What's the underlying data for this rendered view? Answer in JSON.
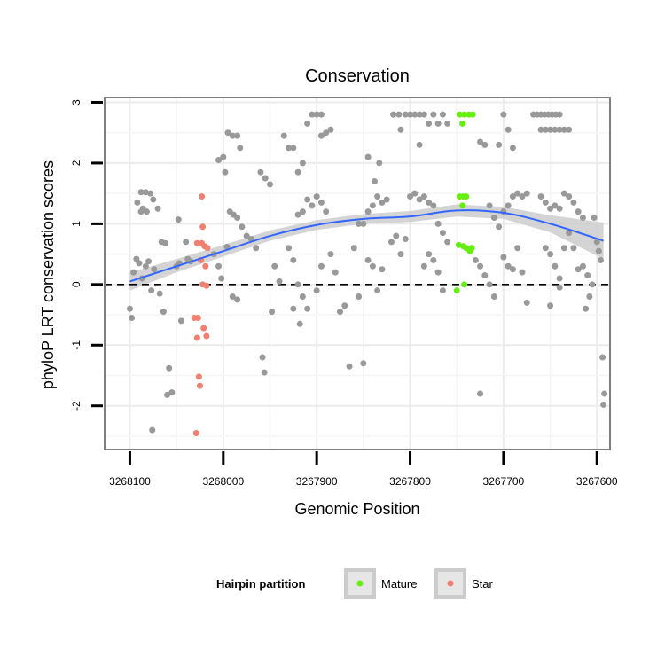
{
  "chart_data": {
    "type": "scatter",
    "title": "Conservation",
    "xlabel": "Genomic Position",
    "ylabel": "phyloP LRT conservation scores",
    "x_reversed": true,
    "xlim": [
      3268127,
      3267586
    ],
    "ylim": [
      -2.72,
      3.08
    ],
    "x_ticks": [
      {
        "value": 3268100,
        "label": "3268100"
      },
      {
        "value": 3268000,
        "label": "3268000"
      },
      {
        "value": 3267900,
        "label": "3267900"
      },
      {
        "value": 3267800,
        "label": "3267800"
      },
      {
        "value": 3267700,
        "label": "3267700"
      },
      {
        "value": 3267600,
        "label": "3267600"
      }
    ],
    "y_ticks": [
      {
        "value": -2,
        "label": "-2"
      },
      {
        "value": -1,
        "label": "-1"
      },
      {
        "value": 0,
        "label": "0"
      },
      {
        "value": 1,
        "label": "1"
      },
      {
        "value": 2,
        "label": "2"
      },
      {
        "value": 3,
        "label": "3"
      }
    ],
    "reference_line": {
      "y": 0,
      "style": "dashed"
    },
    "grid": true,
    "legend": {
      "title": "Hairpin partition",
      "position": "bottom",
      "entries": [
        {
          "label": "Mature",
          "color": "#66ee11"
        },
        {
          "label": "Star",
          "color": "#f08070"
        }
      ]
    },
    "colors": {
      "other": "#999999",
      "smooth_line": "#3366ff",
      "ribbon": "#cccccc"
    },
    "series": [
      {
        "name": "Mature",
        "color": "#66ee11",
        "points": [
          [
            3267747,
            2.8
          ],
          [
            3267742,
            2.8
          ],
          [
            3267737,
            2.8
          ],
          [
            3267733,
            2.8
          ],
          [
            3267744,
            2.65
          ],
          [
            3267747,
            1.45
          ],
          [
            3267743,
            1.45
          ],
          [
            3267740,
            1.45
          ],
          [
            3267744,
            1.3
          ],
          [
            3267748,
            0.65
          ],
          [
            3267743,
            0.63
          ],
          [
            3267740,
            0.6
          ],
          [
            3267736,
            0.55
          ],
          [
            3267734,
            0.6
          ],
          [
            3267742,
            0.0
          ],
          [
            3267750,
            -0.1
          ]
        ]
      },
      {
        "name": "Star",
        "color": "#f08070",
        "points": [
          [
            3268023,
            1.45
          ],
          [
            3268022,
            0.95
          ],
          [
            3268028,
            0.68
          ],
          [
            3268023,
            0.68
          ],
          [
            3268020,
            0.63
          ],
          [
            3268017,
            0.6
          ],
          [
            3268024,
            0.4
          ],
          [
            3268019,
            0.3
          ],
          [
            3268022,
            0.0
          ],
          [
            3268018,
            -0.02
          ],
          [
            3268027,
            -0.55
          ],
          [
            3268031,
            -0.55
          ],
          [
            3268021,
            -0.72
          ],
          [
            3268028,
            -0.88
          ],
          [
            3268018,
            -0.85
          ],
          [
            3268026,
            -1.52
          ],
          [
            3268025,
            -1.67
          ],
          [
            3268029,
            -2.45
          ]
        ]
      }
    ],
    "other_points": [
      [
        3268100,
        -0.4
      ],
      [
        3268098,
        -0.55
      ],
      [
        3268096,
        0.2
      ],
      [
        3268093,
        0.42
      ],
      [
        3268090,
        0.35
      ],
      [
        3268087,
        0.1
      ],
      [
        3268083,
        0.3
      ],
      [
        3268080,
        0.38
      ],
      [
        3268077,
        -0.1
      ],
      [
        3268074,
        0.25
      ],
      [
        3268092,
        1.35
      ],
      [
        3268088,
        1.52
      ],
      [
        3268083,
        1.52
      ],
      [
        3268078,
        1.5
      ],
      [
        3268075,
        1.4
      ],
      [
        3268086,
        1.25
      ],
      [
        3268082,
        1.2
      ],
      [
        3268088,
        1.2
      ],
      [
        3268070,
        1.25
      ],
      [
        3268066,
        0.7
      ],
      [
        3268062,
        0.68
      ],
      [
        3268068,
        -0.15
      ],
      [
        3268064,
        -0.45
      ],
      [
        3268058,
        -1.38
      ],
      [
        3268060,
        -1.82
      ],
      [
        3268055,
        -1.78
      ],
      [
        3268050,
        0.3
      ],
      [
        3268047,
        0.35
      ],
      [
        3268045,
        -0.6
      ],
      [
        3268048,
        1.07
      ],
      [
        3268040,
        0.7
      ],
      [
        3268035,
        0.38
      ],
      [
        3268038,
        0.42
      ],
      [
        3268076,
        -2.4
      ],
      [
        3268005,
        2.05
      ],
      [
        3268000,
        2.1
      ],
      [
        3267995,
        2.5
      ],
      [
        3267990,
        2.45
      ],
      [
        3267985,
        2.45
      ],
      [
        3267982,
        2.25
      ],
      [
        3267998,
        1.85
      ],
      [
        3267993,
        1.2
      ],
      [
        3267989,
        1.15
      ],
      [
        3267985,
        1.1
      ],
      [
        3267980,
        0.95
      ],
      [
        3267975,
        0.8
      ],
      [
        3268010,
        0.5
      ],
      [
        3268005,
        0.3
      ],
      [
        3268002,
        0.1
      ],
      [
        3267996,
        0.62
      ],
      [
        3267990,
        -0.2
      ],
      [
        3267985,
        -0.25
      ],
      [
        3267970,
        0.75
      ],
      [
        3267965,
        0.6
      ],
      [
        3267960,
        1.85
      ],
      [
        3267955,
        1.75
      ],
      [
        3267950,
        1.65
      ],
      [
        3267958,
        -1.2
      ],
      [
        3267956,
        -1.45
      ],
      [
        3267945,
        0.3
      ],
      [
        3267940,
        0.05
      ],
      [
        3267948,
        -0.45
      ],
      [
        3267935,
        2.45
      ],
      [
        3267930,
        2.25
      ],
      [
        3267925,
        2.25
      ],
      [
        3267920,
        1.85
      ],
      [
        3267915,
        2.0
      ],
      [
        3267910,
        2.65
      ],
      [
        3267905,
        2.8
      ],
      [
        3267900,
        2.8
      ],
      [
        3267895,
        2.8
      ],
      [
        3267890,
        2.5
      ],
      [
        3267885,
        2.55
      ],
      [
        3267895,
        2.45
      ],
      [
        3267920,
        1.15
      ],
      [
        3267915,
        1.2
      ],
      [
        3267910,
        1.4
      ],
      [
        3267905,
        1.3
      ],
      [
        3267900,
        1.45
      ],
      [
        3267895,
        1.35
      ],
      [
        3267890,
        1.2
      ],
      [
        3267930,
        0.6
      ],
      [
        3267925,
        0.4
      ],
      [
        3267920,
        0.0
      ],
      [
        3267915,
        -0.2
      ],
      [
        3267910,
        -0.4
      ],
      [
        3267918,
        -0.65
      ],
      [
        3267925,
        -0.4
      ],
      [
        3267900,
        -0.1
      ],
      [
        3267895,
        0.3
      ],
      [
        3267885,
        0.5
      ],
      [
        3267880,
        0.2
      ],
      [
        3267875,
        -0.45
      ],
      [
        3267870,
        -0.35
      ],
      [
        3267865,
        -1.35
      ],
      [
        3267855,
        -0.2
      ],
      [
        3267860,
        0.6
      ],
      [
        3267855,
        1.0
      ],
      [
        3267850,
        1.0
      ],
      [
        3267845,
        1.2
      ],
      [
        3267840,
        1.3
      ],
      [
        3267835,
        1.45
      ],
      [
        3267830,
        1.35
      ],
      [
        3267825,
        1.4
      ],
      [
        3267845,
        2.1
      ],
      [
        3267838,
        1.7
      ],
      [
        3267833,
        2.0
      ],
      [
        3267850,
        -1.3
      ],
      [
        3267845,
        0.4
      ],
      [
        3267840,
        0.3
      ],
      [
        3267835,
        -0.1
      ],
      [
        3267830,
        0.25
      ],
      [
        3267820,
        0.7
      ],
      [
        3267815,
        0.8
      ],
      [
        3267810,
        0.5
      ],
      [
        3267805,
        0.75
      ],
      [
        3267818,
        2.8
      ],
      [
        3267812,
        2.8
      ],
      [
        3267805,
        2.8
      ],
      [
        3267800,
        2.8
      ],
      [
        3267795,
        2.8
      ],
      [
        3267790,
        2.8
      ],
      [
        3267785,
        2.8
      ],
      [
        3267780,
        2.65
      ],
      [
        3267775,
        2.8
      ],
      [
        3267770,
        2.65
      ],
      [
        3267765,
        2.8
      ],
      [
        3267760,
        2.65
      ],
      [
        3267810,
        2.55
      ],
      [
        3267790,
        2.3
      ],
      [
        3267800,
        1.45
      ],
      [
        3267795,
        1.5
      ],
      [
        3267790,
        1.4
      ],
      [
        3267785,
        1.45
      ],
      [
        3267780,
        1.35
      ],
      [
        3267775,
        1.3
      ],
      [
        3267770,
        1.0
      ],
      [
        3267765,
        0.85
      ],
      [
        3267760,
        0.7
      ],
      [
        3267780,
        0.5
      ],
      [
        3267775,
        0.4
      ],
      [
        3267785,
        0.3
      ],
      [
        3267770,
        0.2
      ],
      [
        3267765,
        -0.1
      ],
      [
        3267725,
        2.35
      ],
      [
        3267720,
        2.3
      ],
      [
        3267715,
        1.3
      ],
      [
        3267710,
        1.1
      ],
      [
        3267705,
        0.95
      ],
      [
        3267730,
        0.4
      ],
      [
        3267725,
        0.3
      ],
      [
        3267720,
        0.15
      ],
      [
        3267715,
        0.0
      ],
      [
        3267710,
        -0.2
      ],
      [
        3267725,
        -1.8
      ],
      [
        3267700,
        2.8
      ],
      [
        3267695,
        2.55
      ],
      [
        3267690,
        2.25
      ],
      [
        3267705,
        2.3
      ],
      [
        3267700,
        1.2
      ],
      [
        3267695,
        1.3
      ],
      [
        3267690,
        1.45
      ],
      [
        3267685,
        1.5
      ],
      [
        3267680,
        1.45
      ],
      [
        3267675,
        1.5
      ],
      [
        3267700,
        0.45
      ],
      [
        3267695,
        0.3
      ],
      [
        3267690,
        0.25
      ],
      [
        3267685,
        0.6
      ],
      [
        3267680,
        0.2
      ],
      [
        3267675,
        -0.3
      ],
      [
        3267668,
        2.8
      ],
      [
        3267664,
        2.8
      ],
      [
        3267660,
        2.8
      ],
      [
        3267656,
        2.8
      ],
      [
        3267652,
        2.8
      ],
      [
        3267648,
        2.8
      ],
      [
        3267644,
        2.8
      ],
      [
        3267640,
        2.8
      ],
      [
        3267660,
        2.55
      ],
      [
        3267655,
        2.55
      ],
      [
        3267650,
        2.55
      ],
      [
        3267645,
        2.55
      ],
      [
        3267640,
        2.55
      ],
      [
        3267635,
        2.55
      ],
      [
        3267630,
        2.55
      ],
      [
        3267660,
        1.45
      ],
      [
        3267655,
        1.35
      ],
      [
        3267650,
        1.25
      ],
      [
        3267645,
        1.3
      ],
      [
        3267640,
        1.25
      ],
      [
        3267635,
        1.5
      ],
      [
        3267630,
        1.45
      ],
      [
        3267625,
        1.35
      ],
      [
        3267620,
        1.2
      ],
      [
        3267615,
        1.1
      ],
      [
        3267655,
        0.6
      ],
      [
        3267650,
        0.5
      ],
      [
        3267645,
        0.3
      ],
      [
        3267640,
        0.1
      ],
      [
        3267635,
        0.6
      ],
      [
        3267630,
        0.85
      ],
      [
        3267625,
        0.6
      ],
      [
        3267620,
        0.25
      ],
      [
        3267615,
        0.3
      ],
      [
        3267610,
        0.15
      ],
      [
        3267605,
        0.0
      ],
      [
        3267640,
        -0.05
      ],
      [
        3267650,
        -0.35
      ],
      [
        3267612,
        -0.4
      ],
      [
        3267608,
        -0.2
      ],
      [
        3267598,
        0.55
      ],
      [
        3267596,
        0.4
      ],
      [
        3267600,
        0.7
      ],
      [
        3267603,
        1.1
      ],
      [
        3267594,
        -1.2
      ],
      [
        3267592,
        -1.8
      ],
      [
        3267593,
        -1.98
      ]
    ],
    "smooth": [
      [
        3268100,
        0.05
      ],
      [
        3268050,
        0.3
      ],
      [
        3268000,
        0.55
      ],
      [
        3267950,
        0.8
      ],
      [
        3267900,
        0.98
      ],
      [
        3267850,
        1.08
      ],
      [
        3267800,
        1.12
      ],
      [
        3267750,
        1.22
      ],
      [
        3267700,
        1.18
      ],
      [
        3267650,
        1.0
      ],
      [
        3267593,
        0.72
      ]
    ],
    "ribbon": [
      [
        3268100,
        -0.1,
        0.2
      ],
      [
        3268050,
        0.2,
        0.42
      ],
      [
        3268000,
        0.46,
        0.65
      ],
      [
        3267950,
        0.72,
        0.89
      ],
      [
        3267900,
        0.9,
        1.06
      ],
      [
        3267850,
        1.0,
        1.16
      ],
      [
        3267800,
        1.03,
        1.21
      ],
      [
        3267750,
        1.12,
        1.32
      ],
      [
        3267700,
        1.08,
        1.28
      ],
      [
        3267650,
        0.86,
        1.14
      ],
      [
        3267593,
        0.42,
        1.02
      ]
    ]
  }
}
